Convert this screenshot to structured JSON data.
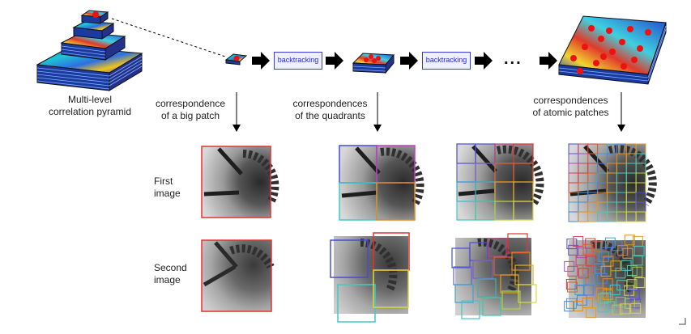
{
  "pyramid_label": [
    "Multi-level",
    "correlation pyramid"
  ],
  "backtracking_label": "backtracking",
  "ellipsis": "...",
  "captions": {
    "big_patch": [
      "correspondence",
      "of a big patch"
    ],
    "quadrants": [
      "correspondences",
      "of the quadrants"
    ],
    "atomic": [
      "correspondences",
      "of atomic patches"
    ]
  },
  "row_labels": {
    "first": [
      "First",
      "image"
    ],
    "second": [
      "Second",
      "image"
    ]
  },
  "colors": {
    "arrow": "#000000",
    "backtracking_border": "#3a3ae0",
    "match_dot": "#ee1111",
    "patch_frame": "#e33333",
    "quadrant_colors": [
      "#4a4ad8",
      "#c040c0",
      "#e08a20",
      "#40c8c8",
      "#d8d840"
    ]
  },
  "icons": [
    "right-arrow-icon",
    "down-arrow-icon",
    "dotted-connector-icon"
  ]
}
